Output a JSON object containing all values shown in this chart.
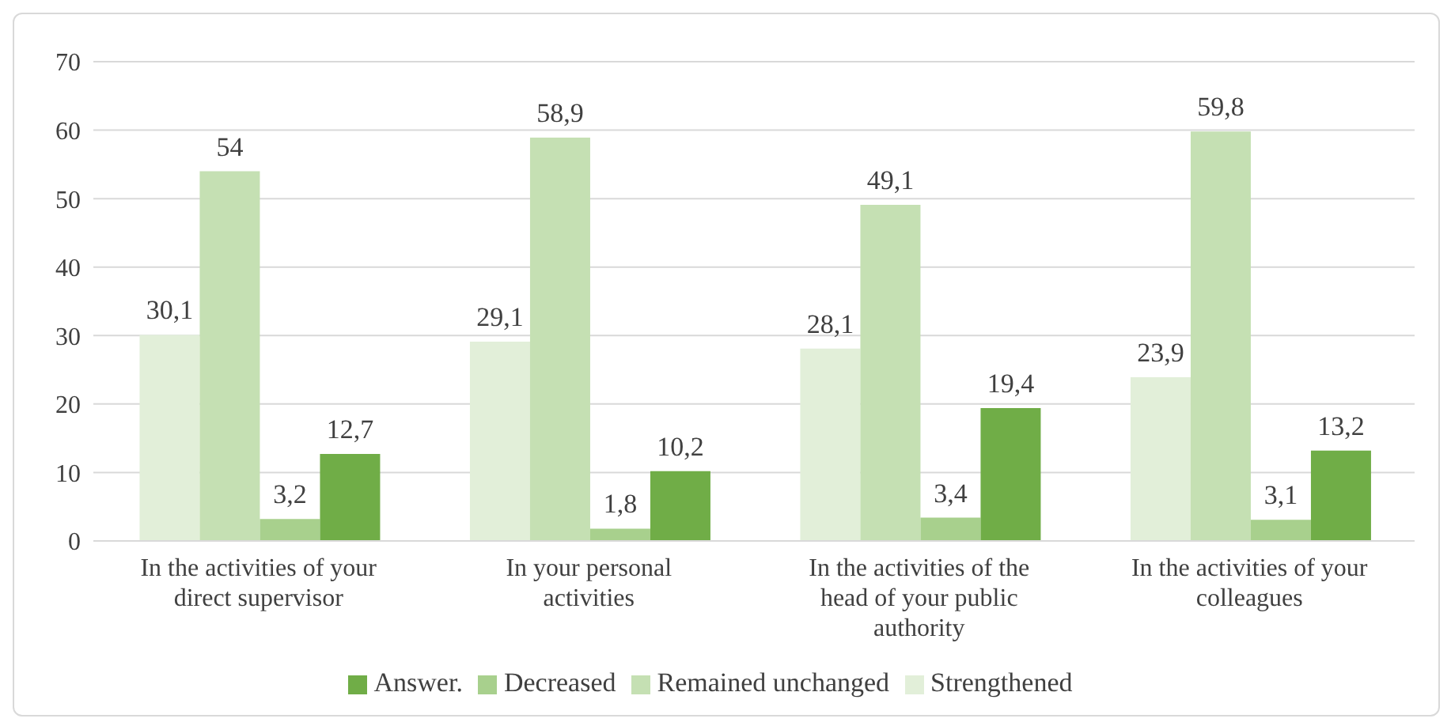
{
  "chart_data": {
    "type": "bar",
    "categories": [
      "In the activities of your direct supervisor",
      "In your personal activities",
      "In the activities of the head of your public authority",
      "In the activities of your colleagues"
    ],
    "series": [
      {
        "name": "Strengthened",
        "color": "#e2efd9",
        "values": [
          30.1,
          29.1,
          28.1,
          23.9
        ],
        "value_labels": [
          "30,1",
          "29,1",
          "28,1",
          "23,9"
        ]
      },
      {
        "name": "Remained unchanged",
        "color": "#c5e0b3",
        "values": [
          54,
          58.9,
          49.1,
          59.8
        ],
        "value_labels": [
          "54",
          "58,9",
          "49,1",
          "59,8"
        ]
      },
      {
        "name": "Decreased",
        "color": "#a8d08d",
        "values": [
          3.2,
          1.8,
          3.4,
          3.1
        ],
        "value_labels": [
          "3,2",
          "1,8",
          "3,4",
          "3,1"
        ]
      },
      {
        "name": "Answer.",
        "color": "#70ad47",
        "values": [
          12.7,
          10.2,
          19.4,
          13.2
        ],
        "value_labels": [
          "12,7",
          "10,2",
          "19,4",
          "13,2"
        ]
      }
    ],
    "ylim": [
      0,
      70
    ],
    "yticks": [
      0,
      10,
      20,
      30,
      40,
      50,
      60,
      70
    ],
    "grid": "y",
    "legend": "bottom"
  }
}
